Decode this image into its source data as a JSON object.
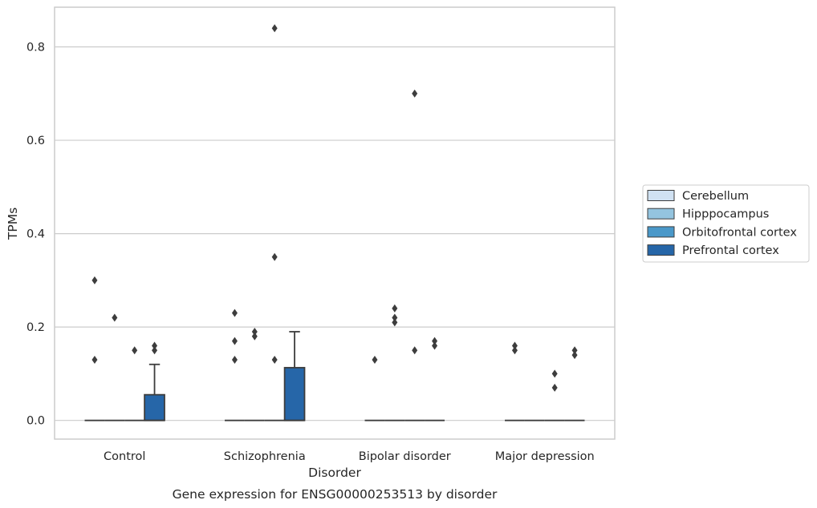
{
  "chart_data": {
    "type": "box",
    "title": "Gene expression for ENSG00000253513 by disorder",
    "xlabel": "Disorder",
    "ylabel": "TPMs",
    "ylim": [
      -0.04,
      0.885
    ],
    "yticks": [
      0.0,
      0.2,
      0.4,
      0.6,
      0.8
    ],
    "ytick_labels": [
      "0.0",
      "0.2",
      "0.4",
      "0.6",
      "0.8"
    ],
    "grid": "horizontal",
    "legend_position": "right",
    "categories": [
      "Control",
      "Schizophrenia",
      "Bipolar disorder",
      "Major depression"
    ],
    "series": [
      {
        "name": "Cerebellum",
        "color": "#d0e1f2",
        "boxes": [
          {
            "q1": 0,
            "median": 0,
            "q3": 0,
            "whisker_low": 0,
            "whisker_high": 0,
            "outliers": [
              0.13,
              0.3
            ]
          },
          {
            "q1": 0,
            "median": 0,
            "q3": 0,
            "whisker_low": 0,
            "whisker_high": 0,
            "outliers": [
              0.13,
              0.17,
              0.23
            ]
          },
          {
            "q1": 0,
            "median": 0,
            "q3": 0,
            "whisker_low": 0,
            "whisker_high": 0,
            "outliers": [
              0.13
            ]
          },
          {
            "q1": 0,
            "median": 0,
            "q3": 0,
            "whisker_low": 0,
            "whisker_high": 0,
            "outliers": [
              0.15,
              0.16
            ]
          }
        ]
      },
      {
        "name": "Hipppocampus",
        "color": "#94c4df",
        "boxes": [
          {
            "q1": 0,
            "median": 0,
            "q3": 0,
            "whisker_low": 0,
            "whisker_high": 0,
            "outliers": [
              0.22
            ]
          },
          {
            "q1": 0,
            "median": 0,
            "q3": 0,
            "whisker_low": 0,
            "whisker_high": 0,
            "outliers": [
              0.18,
              0.19
            ]
          },
          {
            "q1": 0,
            "median": 0,
            "q3": 0,
            "whisker_low": 0,
            "whisker_high": 0,
            "outliers": [
              0.21,
              0.22,
              0.24
            ]
          },
          {
            "q1": 0,
            "median": 0,
            "q3": 0,
            "whisker_low": 0,
            "whisker_high": 0,
            "outliers": []
          }
        ]
      },
      {
        "name": "Orbitofrontal cortex",
        "color": "#4a98c9",
        "boxes": [
          {
            "q1": 0,
            "median": 0,
            "q3": 0,
            "whisker_low": 0,
            "whisker_high": 0,
            "outliers": [
              0.15
            ]
          },
          {
            "q1": 0,
            "median": 0,
            "q3": 0,
            "whisker_low": 0,
            "whisker_high": 0,
            "outliers": [
              0.13,
              0.35,
              0.84
            ]
          },
          {
            "q1": 0,
            "median": 0,
            "q3": 0,
            "whisker_low": 0,
            "whisker_high": 0,
            "outliers": [
              0.15,
              0.7
            ]
          },
          {
            "q1": 0,
            "median": 0,
            "q3": 0,
            "whisker_low": 0,
            "whisker_high": 0,
            "outliers": [
              0.07,
              0.1
            ]
          }
        ]
      },
      {
        "name": "Prefrontal cortex",
        "color": "#2666a8",
        "boxes": [
          {
            "q1": 0,
            "median": 0,
            "q3": 0.055,
            "whisker_low": 0,
            "whisker_high": 0.12,
            "outliers": [
              0.15,
              0.16
            ]
          },
          {
            "q1": 0,
            "median": 0,
            "q3": 0.113,
            "whisker_low": 0,
            "whisker_high": 0.19,
            "outliers": []
          },
          {
            "q1": 0,
            "median": 0,
            "q3": 0,
            "whisker_low": 0,
            "whisker_high": 0,
            "outliers": [
              0.16,
              0.17
            ]
          },
          {
            "q1": 0,
            "median": 0,
            "q3": 0,
            "whisker_low": 0,
            "whisker_high": 0,
            "outliers": [
              0.14,
              0.15
            ]
          }
        ]
      }
    ]
  }
}
